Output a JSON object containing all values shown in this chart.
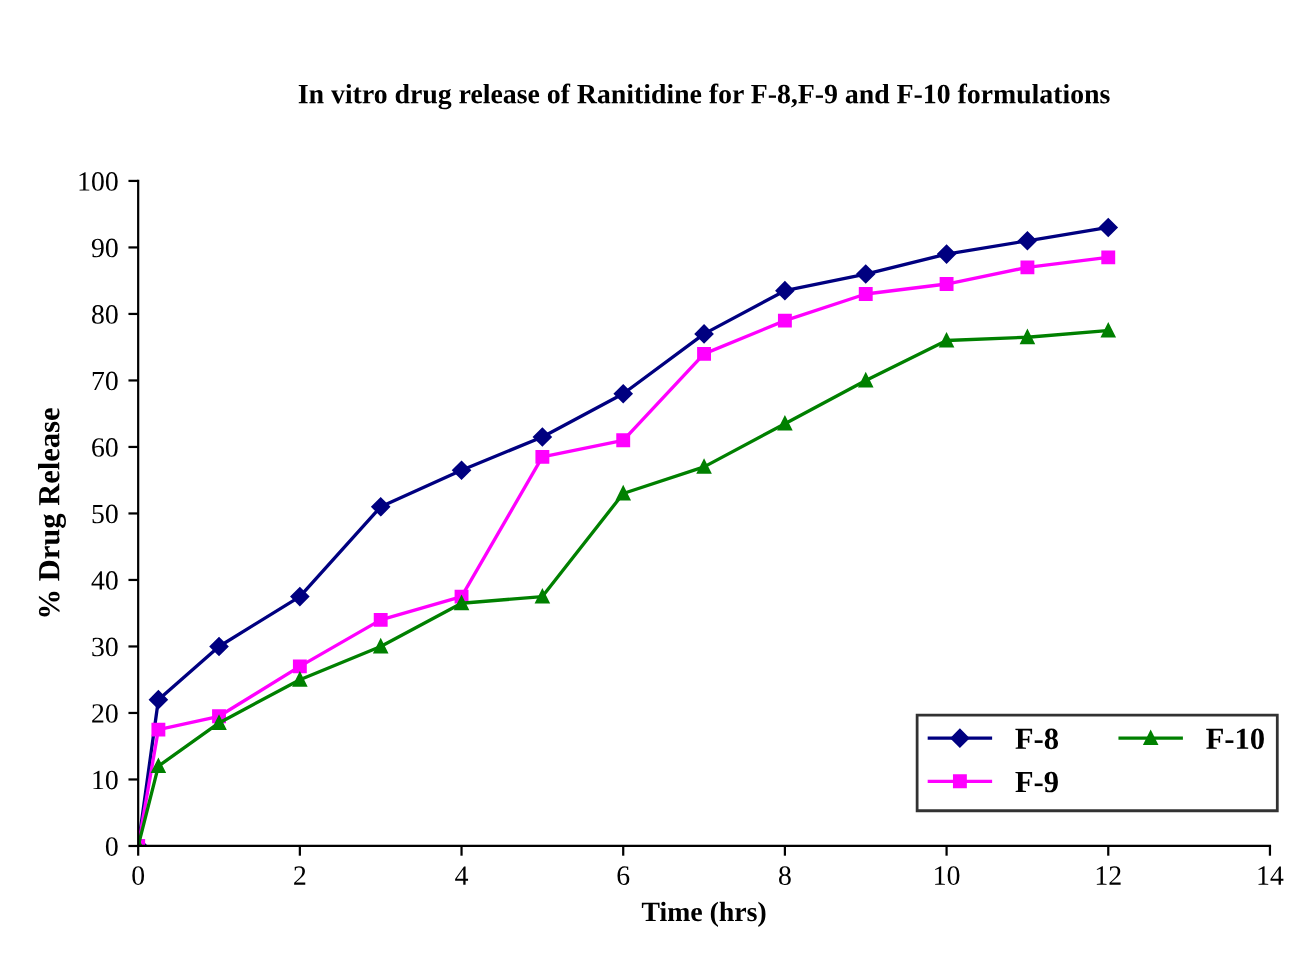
{
  "chart_data": {
    "type": "line",
    "title": "In vitro drug release of Ranitidine for F-8,F-9 and F-10 formulations",
    "xlabel": "Time (hrs)",
    "ylabel": "% Drug Release",
    "x": [
      0,
      0.25,
      1,
      2,
      3,
      4,
      5,
      6,
      7,
      8,
      9,
      10,
      11,
      12
    ],
    "series": [
      {
        "name": "F-8",
        "color": "#000080",
        "marker": "diamond",
        "values": [
          0,
          22,
          30,
          37.5,
          51,
          56.5,
          61.5,
          68,
          77,
          83.5,
          86,
          89,
          91,
          93
        ]
      },
      {
        "name": "F-9",
        "color": "#ff00ff",
        "marker": "square",
        "values": [
          0,
          17.5,
          19.5,
          27,
          34,
          37.5,
          58.5,
          61,
          74,
          79,
          83,
          84.5,
          87,
          88.5
        ]
      },
      {
        "name": "F-10",
        "color": "#008000",
        "marker": "triangle",
        "values": [
          0,
          12,
          18.5,
          25,
          30,
          36.5,
          37.5,
          53,
          57,
          63.5,
          70,
          76,
          76.5,
          77.5
        ]
      }
    ],
    "xlim": [
      0,
      14
    ],
    "xticks": [
      0,
      2,
      4,
      6,
      8,
      10,
      12,
      14
    ],
    "ylim": [
      0,
      100
    ],
    "yticks": [
      0,
      10,
      20,
      30,
      40,
      50,
      60,
      70,
      80,
      90,
      100
    ],
    "grid": false,
    "legend": "bottom right",
    "line_style": "solid"
  }
}
